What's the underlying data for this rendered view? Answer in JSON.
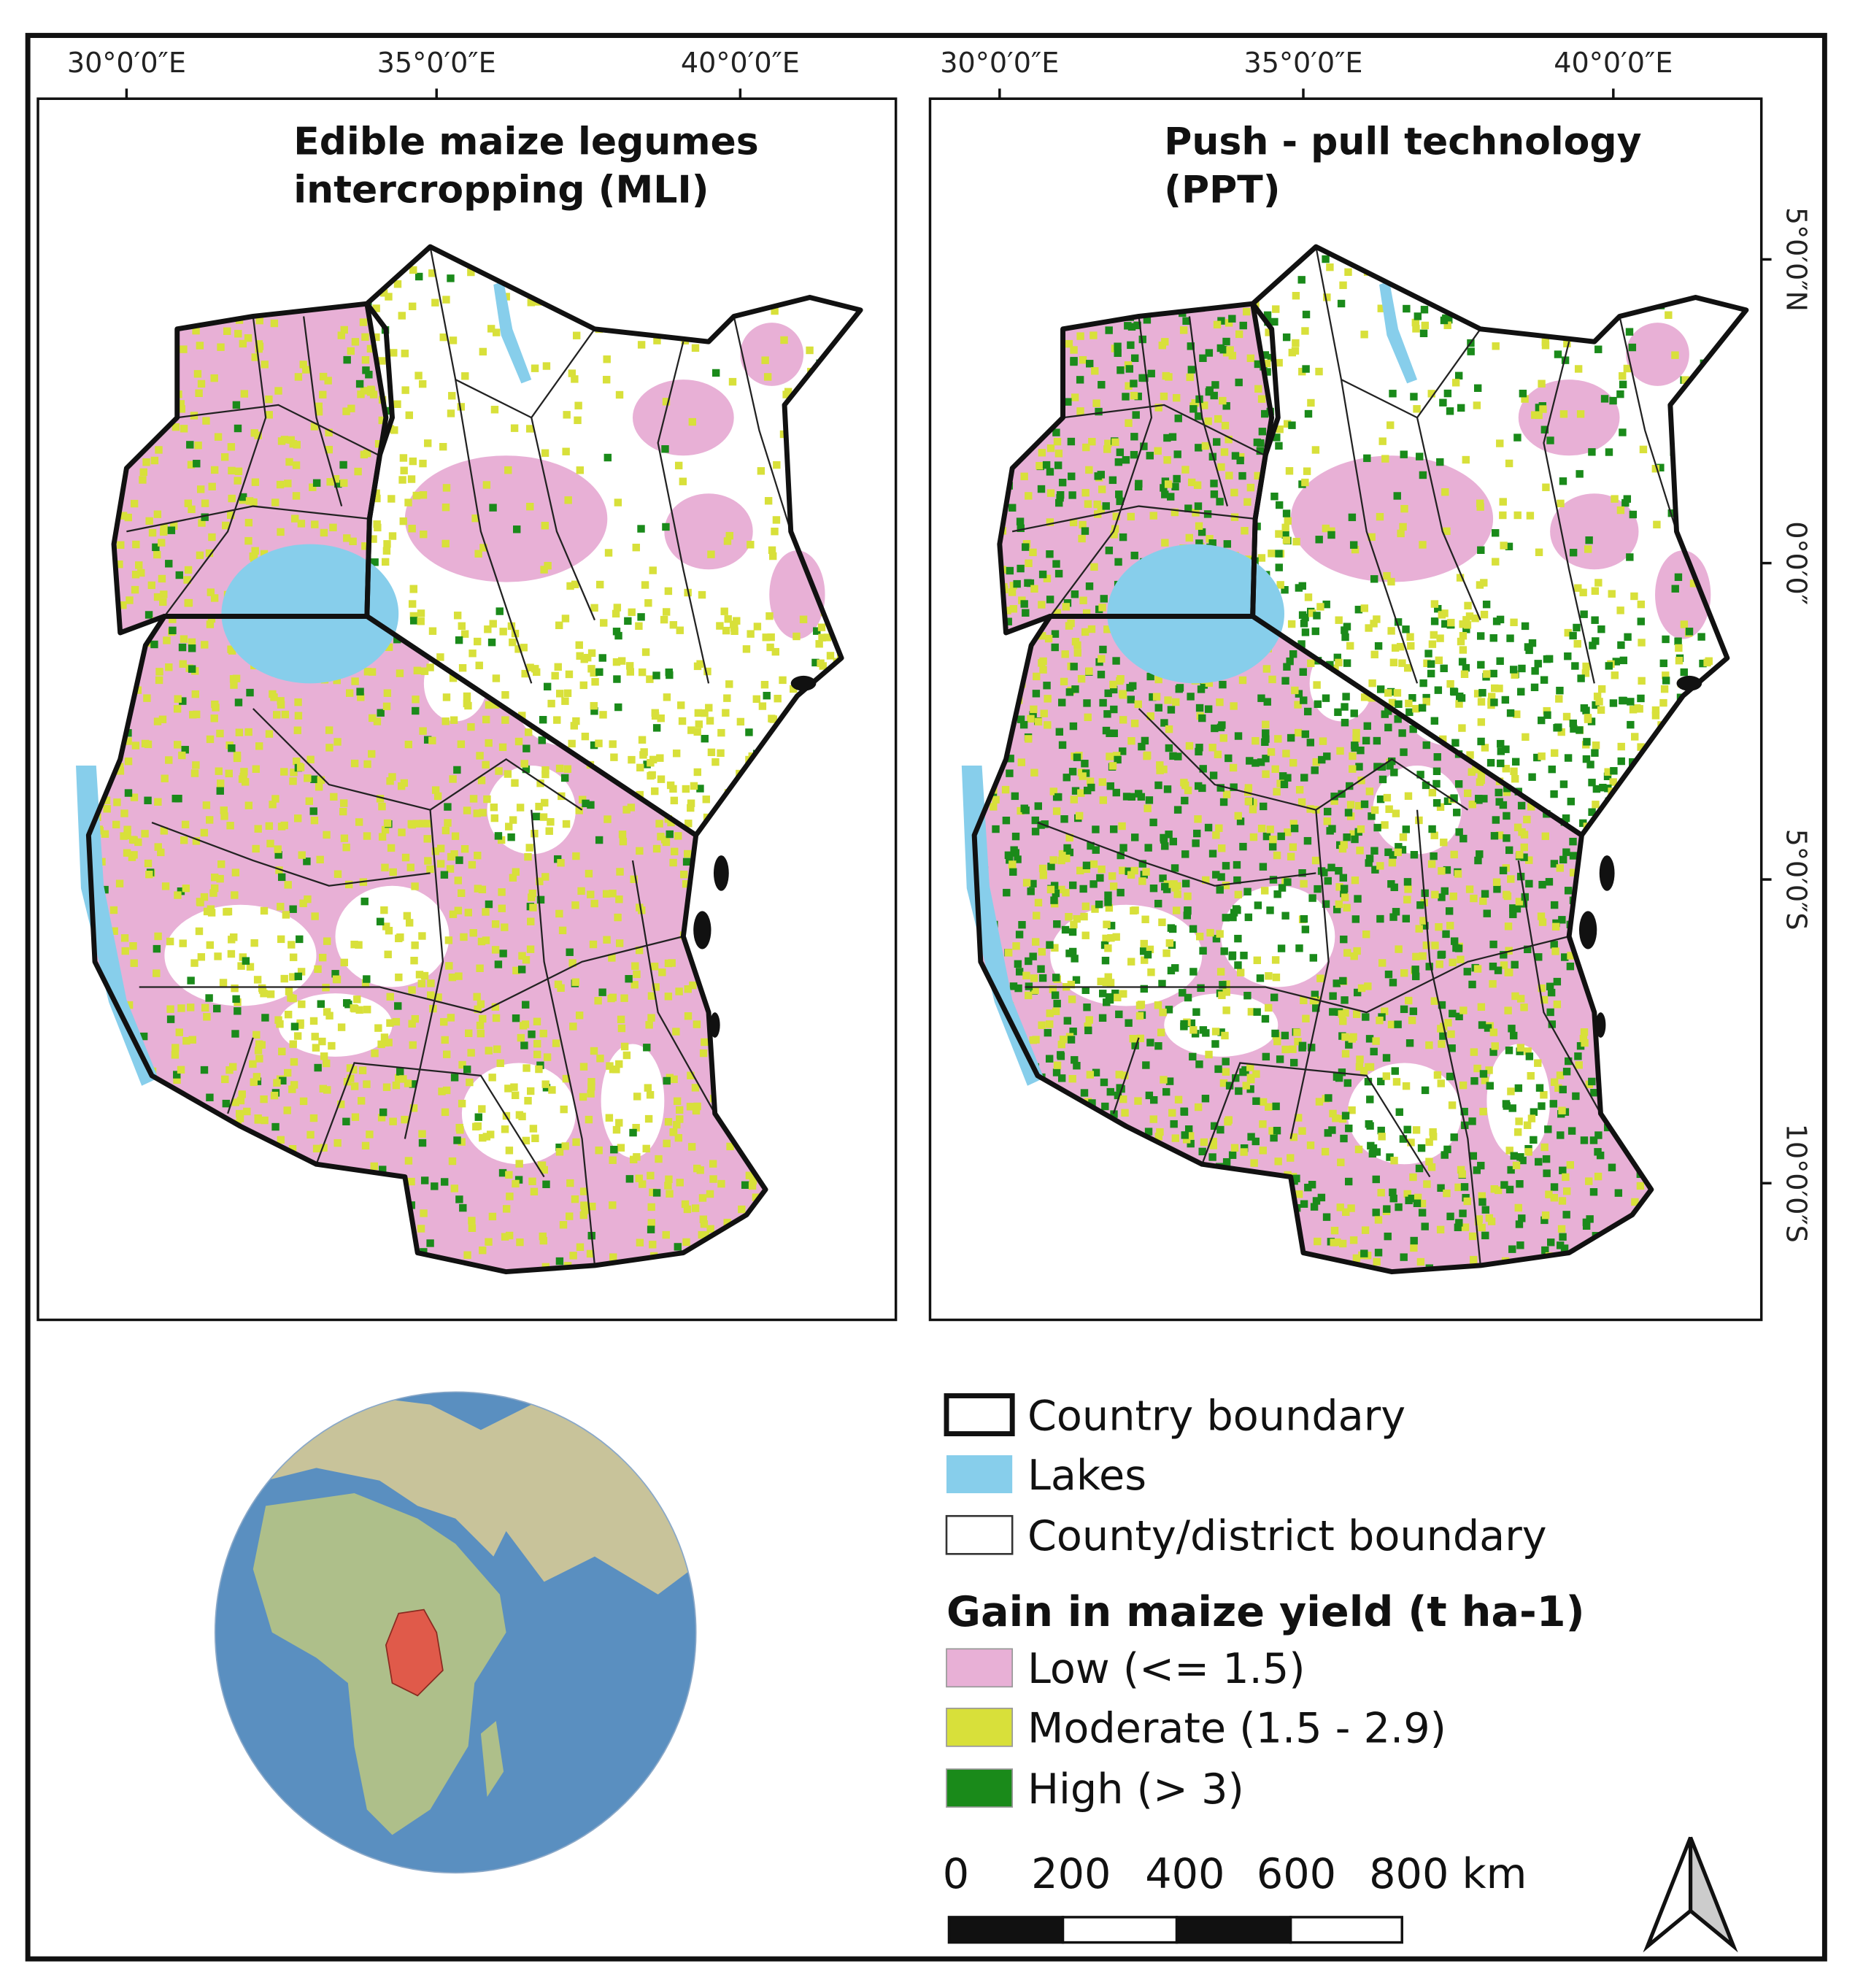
{
  "panels": [
    {
      "title_lines": [
        "Edible  maize  legumes",
        "intercropping (MLI)"
      ]
    },
    {
      "title_lines": [
        "Push - pull technology",
        "(PPT)"
      ]
    }
  ],
  "longitude_labels": [
    "30°0′0″E",
    "35°0′0″E",
    "40°0′0″E"
  ],
  "latitude_labels": [
    "5°0′0″N",
    "0°0′0″",
    "5°0′0″S",
    "10°0′0″S"
  ],
  "legend": {
    "items": [
      "Country boundary",
      "Lakes",
      "County/district boundary"
    ],
    "heading": "Gain in maize yield (t ha-1)",
    "classes": [
      "Low (<= 1.5)",
      "Moderate (1.5 - 2.9)",
      "High (> 3)"
    ]
  },
  "scale_bar": {
    "labels": [
      "0",
      "200",
      "400",
      "600",
      "800 km"
    ]
  }
}
